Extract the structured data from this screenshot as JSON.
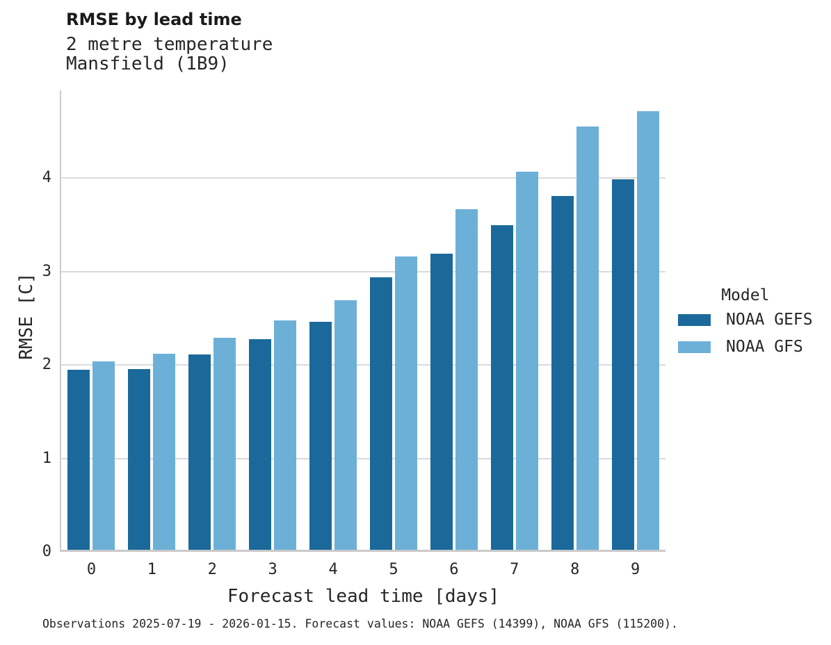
{
  "header": {
    "title": "RMSE by lead time",
    "subtitle1": "2 metre temperature",
    "subtitle2": "Mansfield (1B9)"
  },
  "chart_data": {
    "type": "bar",
    "title": "RMSE by lead time",
    "subtitle": [
      "2 metre temperature",
      "Mansfield (1B9)"
    ],
    "categories": [
      "0",
      "1",
      "2",
      "3",
      "4",
      "5",
      "6",
      "7",
      "8",
      "9"
    ],
    "series": [
      {
        "name": "NOAA GEFS",
        "color": "#1B699A",
        "values": [
          1.95,
          1.96,
          2.11,
          2.28,
          2.46,
          2.94,
          3.19,
          3.5,
          3.81,
          3.99
        ]
      },
      {
        "name": "NOAA GFS",
        "color": "#6CB0D8",
        "values": [
          2.04,
          2.12,
          2.29,
          2.48,
          2.69,
          3.16,
          3.67,
          4.07,
          4.55,
          4.72
        ]
      }
    ],
    "xlabel": "Forecast lead time [days]",
    "ylabel": "RMSE [C]",
    "ylim": [
      0,
      4.94
    ],
    "yticks": [
      0,
      1,
      2,
      3,
      4
    ],
    "grid": "horizontal",
    "legend_title": "Model",
    "legend_position": "right",
    "colors": {
      "grid": "#dadada",
      "spine": "#cccccc",
      "baseline": "#c9c9c9",
      "text": "#262626"
    }
  },
  "legend": {
    "title": "Model",
    "entries": [
      {
        "label": "NOAA GEFS",
        "color": "#1B699A"
      },
      {
        "label": "NOAA GFS",
        "color": "#6CB0D8"
      }
    ]
  },
  "caption": "Observations 2025-07-19 - 2026-01-15. Forecast values: NOAA GEFS (14399), NOAA GFS (115200)."
}
